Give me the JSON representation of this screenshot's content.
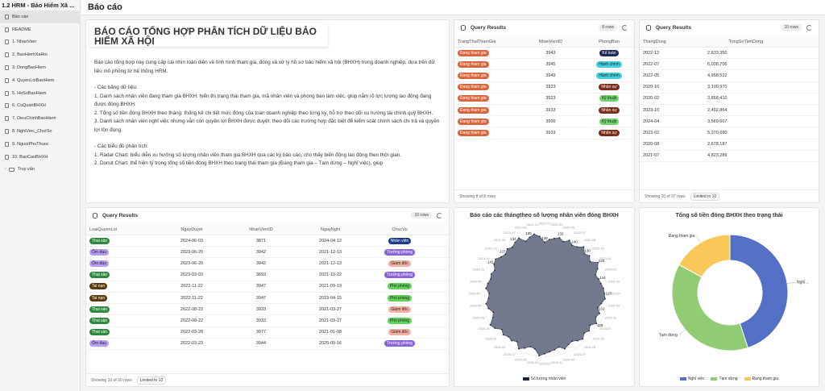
{
  "app": {
    "title": "1.2 HRM - Báo Hiểm Xã ..."
  },
  "sidebar": {
    "items": [
      {
        "label": "Báo cáo",
        "active": true
      },
      {
        "label": "README"
      },
      {
        "label": "1. NhanVien"
      },
      {
        "label": "2. BaoHiemXaHoi"
      },
      {
        "label": "3. DongBaoHiem"
      },
      {
        "label": "4. QuyenLoiBaoHiem"
      },
      {
        "label": "5. HoSoBaoHiem"
      },
      {
        "label": "6. CoQuanBHXH"
      },
      {
        "label": "7. DieuChinhBaoHiem"
      },
      {
        "label": "8. NghiViec_ChotSo"
      },
      {
        "label": "9. NguoiPhuThuoc"
      },
      {
        "label": "10. BaoCaoBHXH"
      }
    ],
    "folder": {
      "label": "Truy vấn"
    }
  },
  "header": {
    "title": "Báo cáo"
  },
  "report": {
    "title": "BÁO CÁO TỔNG HỢP PHÂN TÍCH DỮ LIỆU BẢO HIỂM XÃ HỘI",
    "lines": [
      "Báo cáo tổng hợp này cung cấp cái nhìn toàn diện về tình hình tham gia, đóng và xử lý hồ sơ bảo hiểm xã hội (BHXH) trong doanh nghiệp, dựa trên dữ liệu mô phỏng từ hệ thống HRM.",
      "",
      "- Các bảng dữ liệu:",
      "1. Danh sách nhân viên đang tham gia BHXH: hiển thị trạng thái tham gia, mã nhân viên và phòng ban làm việc, giúp nắm rõ lực lượng lao động đang được đóng BHXH.",
      "2. Tổng số tiền đóng BHXH theo tháng: thống kê chi tiết mức đóng của toàn doanh nghiệp theo từng kỳ, hỗ trợ theo dõi xu hướng tài chính quỹ BHXH.",
      "3. Danh sách nhân viên nghỉ việc nhưng vẫn còn quyền lợi BHXH được duyệt: theo dõi các trường hợp đặc biệt để kiểm soát chính sách chi trả và quyền lợi tồn đọng.",
      "",
      "- Các biểu đồ phân tích:",
      "1. Radar Chart: biểu diễn xu hướng số lượng nhân viên tham gia BHXH qua các kỳ báo cáo, cho thấy biến động lao động theo thời gian.",
      "2. Donut Chart: thể hiện tỷ trọng tổng số tiền đóng BHXH theo trạng thái tham gia (Đang tham gia – Tạm dừng – Nghỉ việc), giúp"
    ]
  },
  "q1": {
    "title": "Query Results",
    "badge": "8 rows",
    "columns": [
      "TrangThaiThamGia",
      "NhanVienID",
      "PhongBan"
    ],
    "rows": [
      [
        "Đang tham gia",
        "3943",
        "Kế toán"
      ],
      [
        "Đang tham gia",
        "3945",
        "Hành chính"
      ],
      [
        "Đang tham gia",
        "3949",
        "Hành chính"
      ],
      [
        "Đang tham gia",
        "3923",
        "Nhân sự"
      ],
      [
        "Đang tham gia",
        "3923",
        "Kỹ thuật"
      ],
      [
        "Đang tham gia",
        "3933",
        "Nhân sự"
      ],
      [
        "Đang tham gia",
        "3900",
        "Kỹ thuật"
      ],
      [
        "Đang tham gia",
        "3933",
        "Nhân sự"
      ]
    ],
    "footer": "Showing 8 of 8 rows"
  },
  "q2": {
    "title": "Query Results",
    "badge": "10 rows",
    "columns": [
      "ThangDong",
      "TongSoTienDong"
    ],
    "rows": [
      [
        "2022-12",
        "2,633,350"
      ],
      [
        "2022-07",
        "6,038,706"
      ],
      [
        "2022-05",
        "4,958,522"
      ],
      [
        "2020-10",
        "3,100,970"
      ],
      [
        "2020-02",
        "3,858,410"
      ],
      [
        "2023-10",
        "2,492,864"
      ],
      [
        "2024-04",
        "3,569,607"
      ],
      [
        "2023-02",
        "5,370,680"
      ],
      [
        "2020-08",
        "2,678,187"
      ],
      [
        "2021-07",
        "4,823,289"
      ]
    ],
    "footer": "Showing 10 of 37 rows",
    "limit": "Limited to 10"
  },
  "q3": {
    "title": "Query Results",
    "badge": "10 rows",
    "columns": [
      "LoaiQuyenLoi",
      "NgayDuyet",
      "NhanVienID",
      "NgayNghi",
      "ChucVu"
    ],
    "rows": [
      [
        "Thai sản",
        "2024-06-03",
        "3871",
        "2024-04-12",
        "Nhân viên"
      ],
      [
        "Ốm đau",
        "2023-06-20",
        "3942",
        "2021-12-13",
        "Trưởng phòng"
      ],
      [
        "Ốm đau",
        "2023-06-20",
        "3942",
        "2021-12-13",
        "Giám đốc"
      ],
      [
        "Thai sản",
        "2023-03-03",
        "3893",
        "2021-10-22",
        "Trưởng phòng"
      ],
      [
        "Tai nạn",
        "2022-11-22",
        "3947",
        "2021-09-19",
        "Phó phòng"
      ],
      [
        "Tai nạn",
        "2022-11-22",
        "3947",
        "2019-04-15",
        "Phó phòng"
      ],
      [
        "Thai sản",
        "2022-08-22",
        "3933",
        "2021-03-27",
        "Giám đốc"
      ],
      [
        "Thai sản",
        "2022-08-22",
        "3933",
        "2021-03-27",
        "Phó phòng"
      ],
      [
        "Thai sản",
        "2022-03-28",
        "3977",
        "2021-01-08",
        "Giám đốc"
      ],
      [
        "Ốm đau",
        "2022-03-23",
        "3944",
        "2025-09-16",
        "Trưởng phòng"
      ]
    ],
    "footer": "Showing 10 of 30 rows",
    "limit": "Limited to 10"
  },
  "colors": {
    "status": {
      "Đang tham gia": "#d9653b"
    },
    "dept": {
      "Kế toán": "#1f2a5a",
      "Hành chính": "#44cfe0",
      "Nhân sự": "#7a2e1a",
      "Kỹ thuật": "#6dd36a"
    },
    "benefit": {
      "Thai sản": "#2e8b3e",
      "Ốm đau": "#b59cf0",
      "Tai nạn": "#5a3a0a"
    },
    "position": {
      "Nhân viên": "#1a3a8a",
      "Trưởng phòng": "#8a63d8",
      "Giám đốc": "#f2b0a0",
      "Phó phòng": "#5fd35a"
    }
  },
  "chart_data": [
    {
      "type": "radar",
      "title": "Báo cáo các thángtheo số lượng nhân viên đóng BHXH",
      "series": [
        {
          "name": "Số lượng nhân viên",
          "color": "#5b6178"
        }
      ],
      "categories": [
        "2022-01",
        "2022-02",
        "2022-03",
        "2022-04",
        "2022-05",
        "2022-06",
        "2022-07",
        "2022-08",
        "2022-09",
        "2022-10",
        "2022-11",
        "2022-12",
        "2023-01",
        "2023-02",
        "2023-03",
        "2023-04",
        "2023-05",
        "2023-06",
        "2023-07",
        "2023-08",
        "2023-09",
        "2023-10",
        "2023-11",
        "2023-12",
        "2024-01",
        "2024-02",
        "2024-03",
        "2024-04",
        "2024-05",
        "2024-06",
        "2024-07",
        "2024-08",
        "2024-09",
        "2024-10",
        "2024-11",
        "2024-12",
        "2025-01",
        "2025-02",
        "2025-03",
        "2025-04",
        "2025-05",
        "2025-06",
        "2025-07",
        "2025-08",
        "2025-09",
        "2025-10",
        "2025-11",
        "2025-12",
        "2020-01",
        "2020-02",
        "2020-03",
        "2020-04",
        "2020-05",
        "2020-06",
        "2020-07",
        "2020-08",
        "2020-09",
        "2020-10",
        "2020-11",
        "2020-12",
        "2021-01",
        "2021-02",
        "2021-03",
        "2021-04",
        "2021-05",
        "2021-06",
        "2021-07",
        "2021-08",
        "2021-09",
        "2021-10",
        "2021-11",
        "2021-12"
      ],
      "values": [
        118,
        125,
        129,
        133,
        127,
        135,
        128,
        131,
        140,
        130,
        135,
        128,
        142,
        135,
        125,
        129,
        132,
        136,
        138,
        140,
        133,
        127,
        135,
        130,
        138,
        128,
        134,
        129,
        137,
        133,
        127,
        130,
        136,
        128,
        132,
        135,
        139,
        144,
        130,
        127,
        134,
        141,
        128,
        133,
        130,
        135,
        129,
        140,
        145,
        132,
        126,
        134,
        137,
        130,
        128,
        136,
        133,
        129,
        131,
        127,
        135,
        138,
        131,
        128,
        134,
        130,
        136,
        141,
        128,
        134,
        139,
        132
      ],
      "labels": [
        139,
        132,
        140,
        136,
        145,
        144,
        127,
        131,
        128,
        141,
        137,
        134,
        135
      ]
    },
    {
      "type": "pie",
      "title": "Tổng số tiền đóng BHXH theo trạng thái",
      "categories": [
        "Nghỉ việc",
        "Tạm dừng",
        "Đang tham gia"
      ],
      "values": [
        45,
        38,
        17
      ],
      "colors": [
        "#5470c6",
        "#91cc75",
        "#fac858"
      ],
      "slice_labels": [
        "Nghỉ...",
        "Tạm dừng",
        "Đang tham gia"
      ]
    }
  ]
}
